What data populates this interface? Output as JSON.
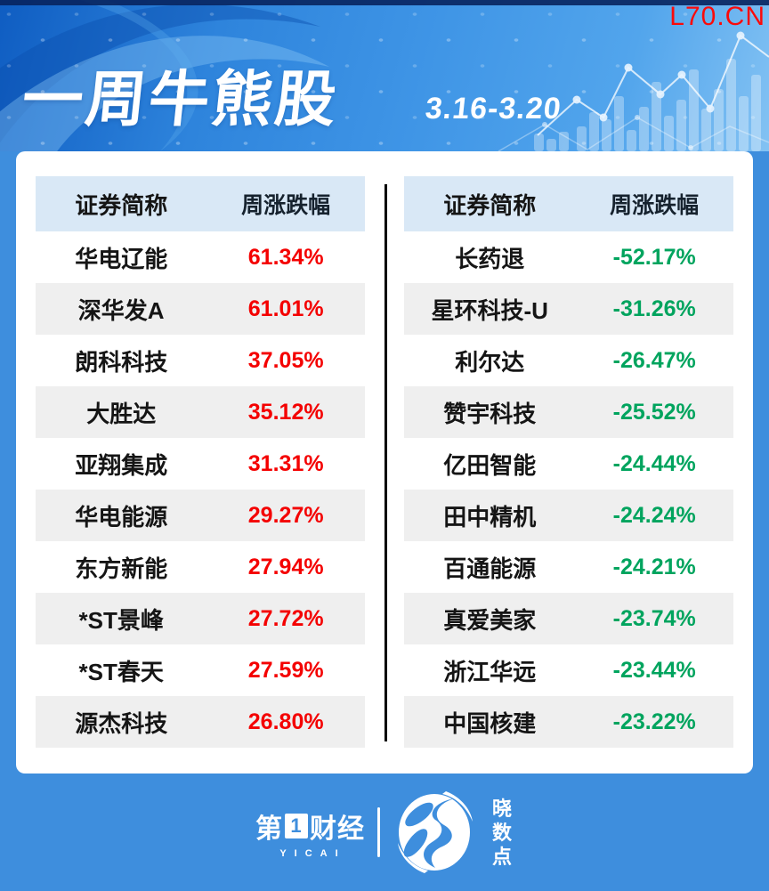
{
  "watermark": "L70.CN",
  "chart_data": {
    "type": "table",
    "title": "一周牛熊股",
    "date_range": "3.16-3.20",
    "columns": [
      "证券简称",
      "周涨跌幅"
    ],
    "gainers": [
      {
        "name": "华电辽能",
        "change": "61.34%"
      },
      {
        "name": "深华发A",
        "change": "61.01%"
      },
      {
        "name": "朗科科技",
        "change": "37.05%"
      },
      {
        "name": "大胜达",
        "change": "35.12%"
      },
      {
        "name": "亚翔集成",
        "change": "31.31%"
      },
      {
        "name": "华电能源",
        "change": "29.27%"
      },
      {
        "name": "东方新能",
        "change": "27.94%"
      },
      {
        "name": "*ST景峰",
        "change": "27.72%"
      },
      {
        "name": "*ST春天",
        "change": "27.59%"
      },
      {
        "name": "源杰科技",
        "change": "26.80%"
      }
    ],
    "losers": [
      {
        "name": "长药退",
        "change": "-52.17%"
      },
      {
        "name": "星环科技-U",
        "change": "-31.26%"
      },
      {
        "name": "利尔达",
        "change": "-26.47%"
      },
      {
        "name": "赞宇科技",
        "change": "-25.52%"
      },
      {
        "name": "亿田智能",
        "change": "-24.44%"
      },
      {
        "name": "田中精机",
        "change": "-24.24%"
      },
      {
        "name": "百通能源",
        "change": "-24.21%"
      },
      {
        "name": "真爱美家",
        "change": "-23.74%"
      },
      {
        "name": "浙江华远",
        "change": "-23.44%"
      },
      {
        "name": "中国核建",
        "change": "-23.22%"
      }
    ]
  },
  "footer": {
    "brand_part1": "第",
    "brand_digit": "1",
    "brand_part2": "财经",
    "brand_sub": "YICAI",
    "partner": "晓数点"
  },
  "colors": {
    "gain": "#f40000",
    "loss": "#00a45e",
    "watermark_red": "#fb0a0a",
    "accent_blue": "#3e8edd",
    "header_cell_bg": "#d9e8f6",
    "row_alt_bg": "#efefef"
  }
}
